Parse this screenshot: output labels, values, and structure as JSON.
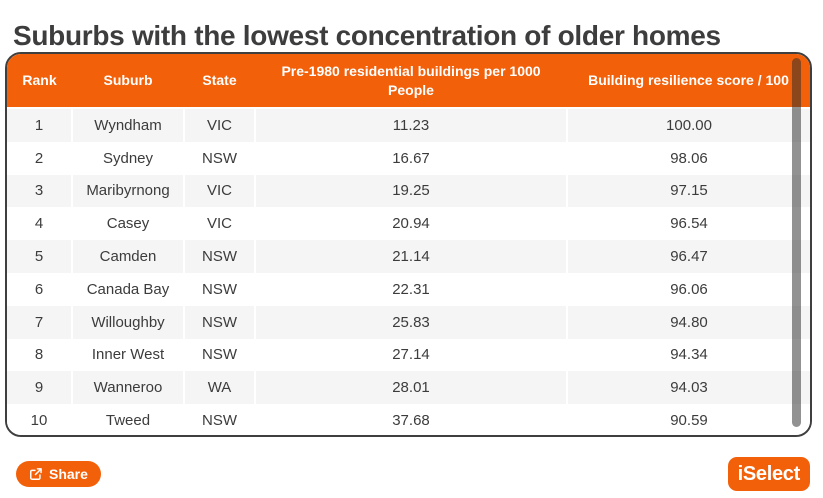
{
  "title": "Suburbs with the lowest concentration of older homes",
  "colors": {
    "accent": "#f2600a",
    "header_text": "#ffffff",
    "row_alt": "#f5f5f5",
    "body_text": "#3c3c3c",
    "card_border": "#3f3f3f",
    "scrollbar": "#2e2e2e"
  },
  "chart_data": {
    "type": "table",
    "title": "Suburbs with the lowest concentration of older homes",
    "columns": [
      "Rank",
      "Suburb",
      "State",
      "Pre-1980 residential buildings per 1000 People",
      "Building resilience score / 100"
    ],
    "rows": [
      [
        "1",
        "Wyndham",
        "VIC",
        "11.23",
        "100.00"
      ],
      [
        "2",
        "Sydney",
        "NSW",
        "16.67",
        "98.06"
      ],
      [
        "3",
        "Maribyrnong",
        "VIC",
        "19.25",
        "97.15"
      ],
      [
        "4",
        "Casey",
        "VIC",
        "20.94",
        "96.54"
      ],
      [
        "5",
        "Camden",
        "NSW",
        "21.14",
        "96.47"
      ],
      [
        "6",
        "Canada Bay",
        "NSW",
        "22.31",
        "96.06"
      ],
      [
        "7",
        "Willoughby",
        "NSW",
        "25.83",
        "94.80"
      ],
      [
        "8",
        "Inner West",
        "NSW",
        "27.14",
        "94.34"
      ],
      [
        "9",
        "Wanneroo",
        "WA",
        "28.01",
        "94.03"
      ],
      [
        "10",
        "Tweed",
        "NSW",
        "37.68",
        "90.59"
      ]
    ]
  },
  "footer": {
    "share_label": "Share",
    "share_icon": "share-export-icon",
    "brand": "iSelect"
  }
}
